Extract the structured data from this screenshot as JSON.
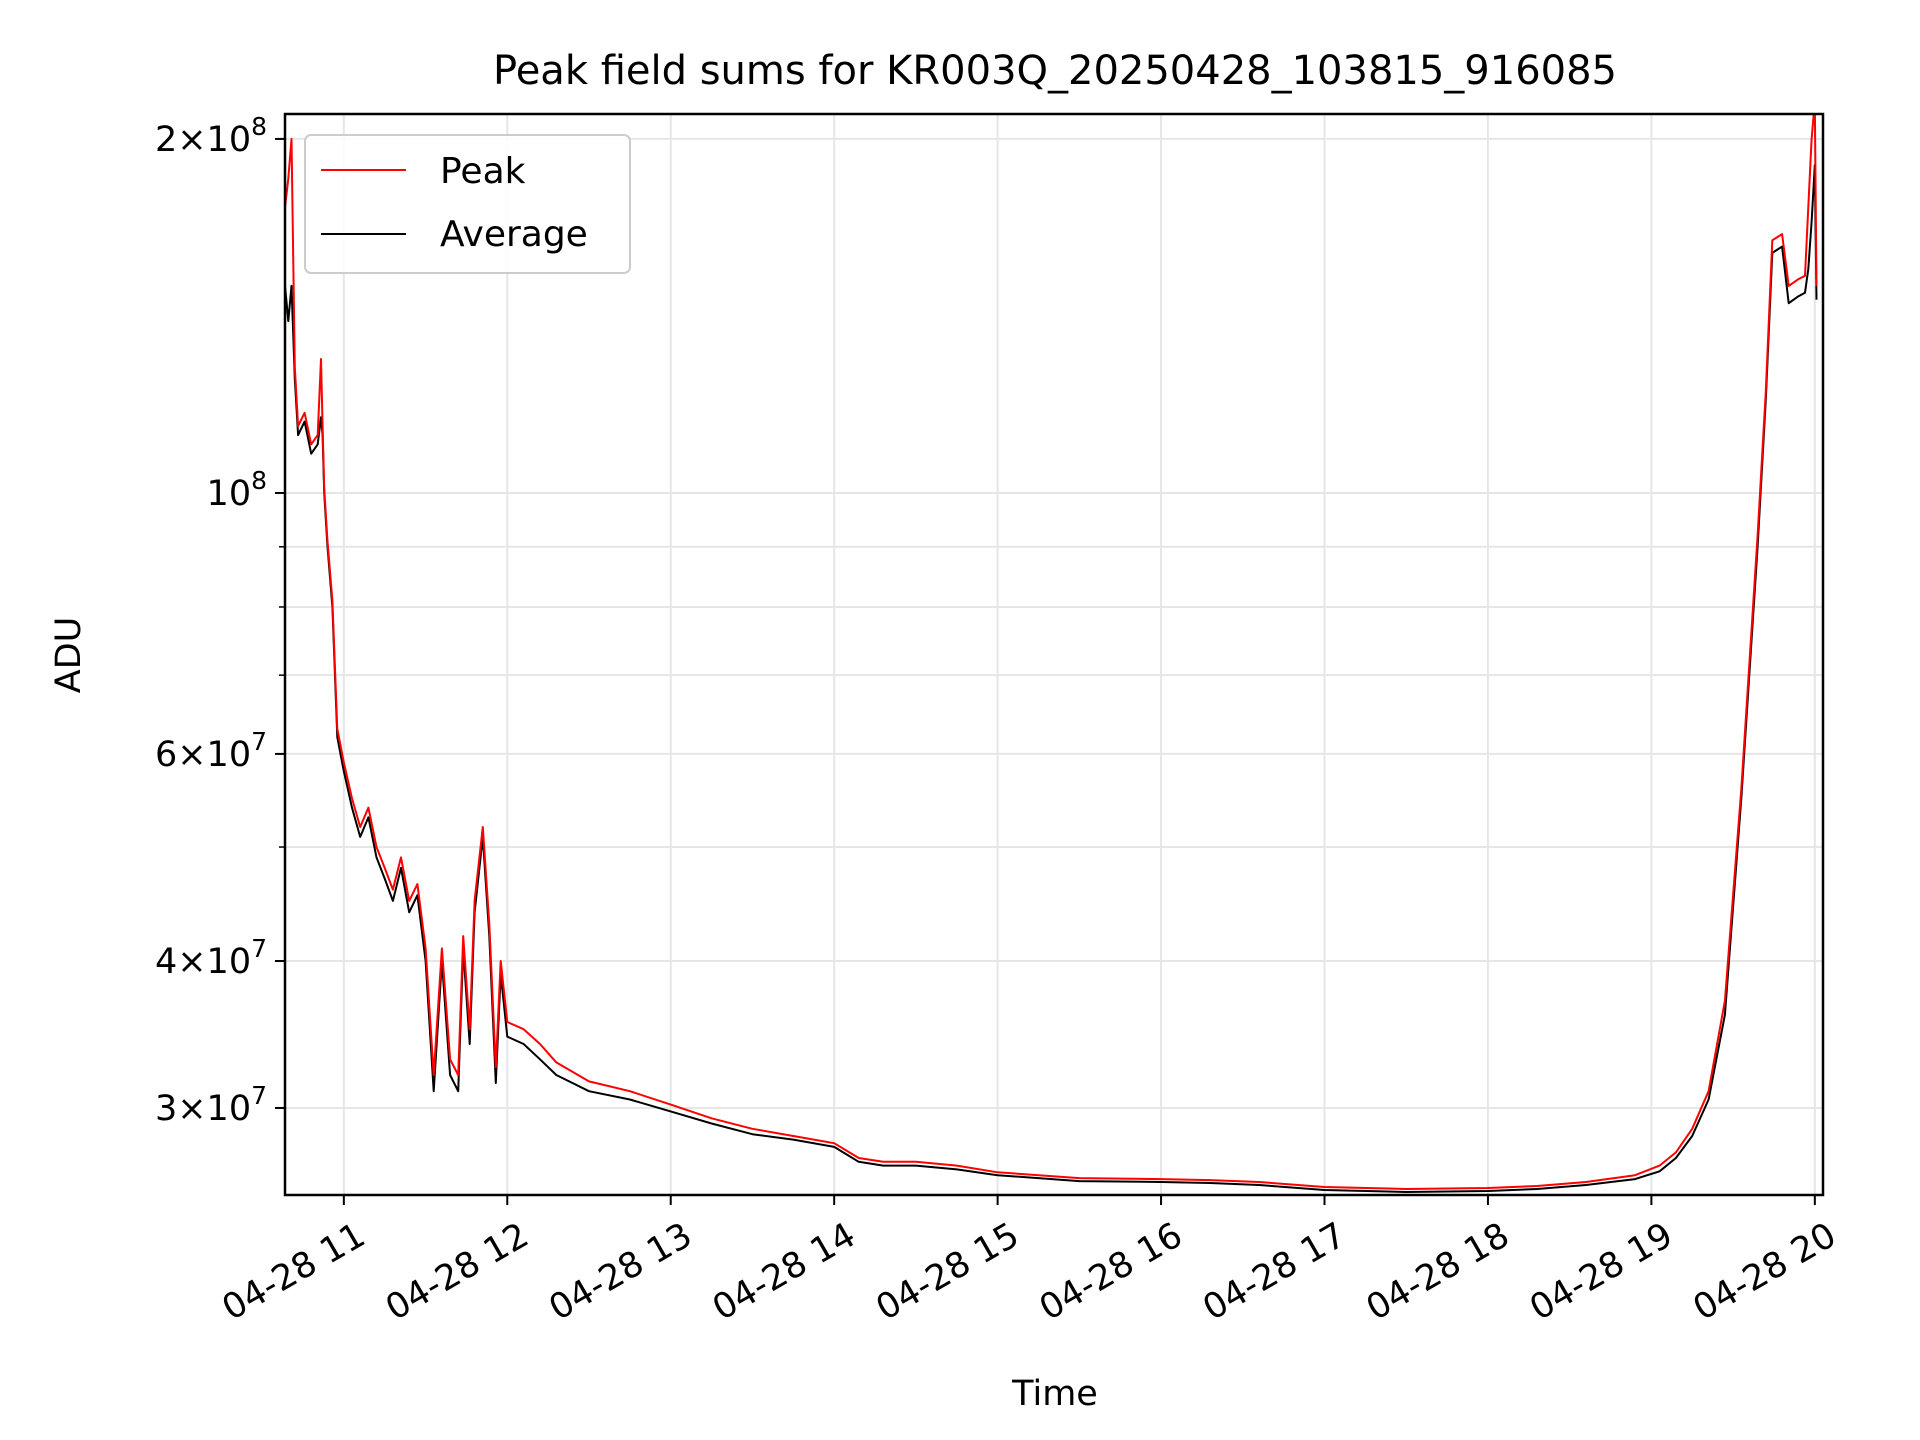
{
  "chart_data": {
    "type": "line",
    "title": "Peak field sums for KR003Q_20250428_103815_916085",
    "xlabel": "Time",
    "ylabel": "ADU",
    "yscale": "log",
    "xlim_hours": [
      10.64,
      20.05
    ],
    "ylim": [
      25300000,
      210000000
    ],
    "grid": true,
    "legend_location": "upper left",
    "x_ticks": [
      {
        "value": 11,
        "label": "04-28 11"
      },
      {
        "value": 12,
        "label": "04-28 12"
      },
      {
        "value": 13,
        "label": "04-28 13"
      },
      {
        "value": 14,
        "label": "04-28 14"
      },
      {
        "value": 15,
        "label": "04-28 15"
      },
      {
        "value": 16,
        "label": "04-28 16"
      },
      {
        "value": 17,
        "label": "04-28 17"
      },
      {
        "value": 18,
        "label": "04-28 18"
      },
      {
        "value": 19,
        "label": "04-28 19"
      },
      {
        "value": 20,
        "label": "04-28 20"
      }
    ],
    "y_ticks": [
      {
        "value": 200000000,
        "coef": "2",
        "exp": "8"
      },
      {
        "value": 100000000,
        "coef": "",
        "exp": "8"
      },
      {
        "value": 60000000,
        "coef": "6",
        "exp": "7"
      },
      {
        "value": 40000000,
        "coef": "4",
        "exp": "7"
      },
      {
        "value": 30000000,
        "coef": "3",
        "exp": "7"
      }
    ],
    "y_minor_ticks": [
      50000000,
      70000000,
      80000000,
      90000000
    ],
    "series": [
      {
        "name": "Average",
        "color": "#000000",
        "points": [
          [
            10.64,
            150000000
          ],
          [
            10.66,
            140000000
          ],
          [
            10.68,
            150000000
          ],
          [
            10.7,
            125000000
          ],
          [
            10.72,
            112000000
          ],
          [
            10.76,
            115000000
          ],
          [
            10.8,
            108000000
          ],
          [
            10.84,
            110000000
          ],
          [
            10.86,
            116000000
          ],
          [
            10.87,
            112000000
          ],
          [
            10.88,
            100000000
          ],
          [
            10.9,
            90000000
          ],
          [
            10.93,
            80000000
          ],
          [
            10.96,
            62000000
          ],
          [
            11.0,
            58000000
          ],
          [
            11.05,
            54000000
          ],
          [
            11.1,
            51000000
          ],
          [
            11.15,
            53000000
          ],
          [
            11.2,
            49000000
          ],
          [
            11.25,
            47000000
          ],
          [
            11.3,
            45000000
          ],
          [
            11.35,
            48000000
          ],
          [
            11.4,
            44000000
          ],
          [
            11.45,
            45500000
          ],
          [
            11.5,
            40000000
          ],
          [
            11.55,
            31000000
          ],
          [
            11.6,
            40000000
          ],
          [
            11.65,
            32000000
          ],
          [
            11.7,
            31000000
          ],
          [
            11.73,
            41000000
          ],
          [
            11.77,
            34000000
          ],
          [
            11.8,
            44000000
          ],
          [
            11.85,
            51000000
          ],
          [
            11.89,
            42000000
          ],
          [
            11.93,
            31500000
          ],
          [
            11.96,
            39000000
          ],
          [
            12.0,
            34500000
          ],
          [
            12.1,
            34000000
          ],
          [
            12.2,
            33000000
          ],
          [
            12.3,
            32000000
          ],
          [
            12.5,
            31000000
          ],
          [
            12.75,
            30500000
          ],
          [
            13.0,
            29800000
          ],
          [
            13.25,
            29100000
          ],
          [
            13.5,
            28500000
          ],
          [
            13.75,
            28200000
          ],
          [
            14.0,
            27800000
          ],
          [
            14.15,
            27000000
          ],
          [
            14.3,
            26800000
          ],
          [
            14.5,
            26800000
          ],
          [
            14.75,
            26600000
          ],
          [
            15.0,
            26300000
          ],
          [
            15.5,
            26000000
          ],
          [
            16.0,
            25950000
          ],
          [
            16.3,
            25900000
          ],
          [
            16.6,
            25800000
          ],
          [
            17.0,
            25550000
          ],
          [
            17.5,
            25450000
          ],
          [
            18.0,
            25500000
          ],
          [
            18.3,
            25600000
          ],
          [
            18.6,
            25800000
          ],
          [
            18.9,
            26100000
          ],
          [
            19.05,
            26500000
          ],
          [
            19.15,
            27200000
          ],
          [
            19.25,
            28400000
          ],
          [
            19.35,
            30500000
          ],
          [
            19.45,
            36000000
          ],
          [
            19.55,
            55000000
          ],
          [
            19.65,
            90000000
          ],
          [
            19.7,
            120000000
          ],
          [
            19.74,
            160000000
          ],
          [
            19.8,
            162000000
          ],
          [
            19.84,
            145000000
          ],
          [
            19.9,
            147000000
          ],
          [
            19.94,
            148000000
          ],
          [
            19.96,
            155000000
          ],
          [
            19.98,
            170000000
          ],
          [
            20.0,
            190000000
          ],
          [
            20.01,
            146000000
          ]
        ]
      },
      {
        "name": "Peak",
        "color": "#ff0000",
        "points": [
          [
            10.64,
            175000000
          ],
          [
            10.66,
            185000000
          ],
          [
            10.68,
            200000000
          ],
          [
            10.7,
            128000000
          ],
          [
            10.72,
            114000000
          ],
          [
            10.76,
            117000000
          ],
          [
            10.8,
            110000000
          ],
          [
            10.84,
            112000000
          ],
          [
            10.86,
            130000000
          ],
          [
            10.87,
            114000000
          ],
          [
            10.88,
            101000000
          ],
          [
            10.9,
            91000000
          ],
          [
            10.93,
            81000000
          ],
          [
            10.96,
            63000000
          ],
          [
            11.0,
            59000000
          ],
          [
            11.05,
            55000000
          ],
          [
            11.1,
            52000000
          ],
          [
            11.15,
            54000000
          ],
          [
            11.2,
            50000000
          ],
          [
            11.25,
            48000000
          ],
          [
            11.3,
            46000000
          ],
          [
            11.35,
            49000000
          ],
          [
            11.4,
            45000000
          ],
          [
            11.45,
            46500000
          ],
          [
            11.5,
            41000000
          ],
          [
            11.55,
            32000000
          ],
          [
            11.6,
            41000000
          ],
          [
            11.65,
            33000000
          ],
          [
            11.7,
            32000000
          ],
          [
            11.73,
            42000000
          ],
          [
            11.77,
            35000000
          ],
          [
            11.8,
            45000000
          ],
          [
            11.85,
            52000000
          ],
          [
            11.89,
            43000000
          ],
          [
            11.93,
            32500000
          ],
          [
            11.96,
            40000000
          ],
          [
            12.0,
            35500000
          ],
          [
            12.1,
            35000000
          ],
          [
            12.2,
            34000000
          ],
          [
            12.3,
            32800000
          ],
          [
            12.5,
            31600000
          ],
          [
            12.75,
            31000000
          ],
          [
            13.0,
            30200000
          ],
          [
            13.25,
            29400000
          ],
          [
            13.5,
            28800000
          ],
          [
            13.75,
            28400000
          ],
          [
            14.0,
            28000000
          ],
          [
            14.15,
            27200000
          ],
          [
            14.3,
            27000000
          ],
          [
            14.5,
            27000000
          ],
          [
            14.75,
            26800000
          ],
          [
            15.0,
            26450000
          ],
          [
            15.5,
            26150000
          ],
          [
            16.0,
            26100000
          ],
          [
            16.3,
            26050000
          ],
          [
            16.6,
            25950000
          ],
          [
            17.0,
            25700000
          ],
          [
            17.5,
            25600000
          ],
          [
            18.0,
            25650000
          ],
          [
            18.3,
            25750000
          ],
          [
            18.6,
            25950000
          ],
          [
            18.9,
            26300000
          ],
          [
            19.05,
            26800000
          ],
          [
            19.15,
            27500000
          ],
          [
            19.25,
            28800000
          ],
          [
            19.35,
            31000000
          ],
          [
            19.45,
            37000000
          ],
          [
            19.55,
            56000000
          ],
          [
            19.65,
            92000000
          ],
          [
            19.7,
            122000000
          ],
          [
            19.74,
            164000000
          ],
          [
            19.8,
            166000000
          ],
          [
            19.84,
            150000000
          ],
          [
            19.9,
            152000000
          ],
          [
            19.94,
            153000000
          ],
          [
            19.96,
            175000000
          ],
          [
            19.98,
            200000000
          ],
          [
            20.0,
            215000000
          ],
          [
            20.01,
            150000000
          ]
        ]
      }
    ]
  }
}
